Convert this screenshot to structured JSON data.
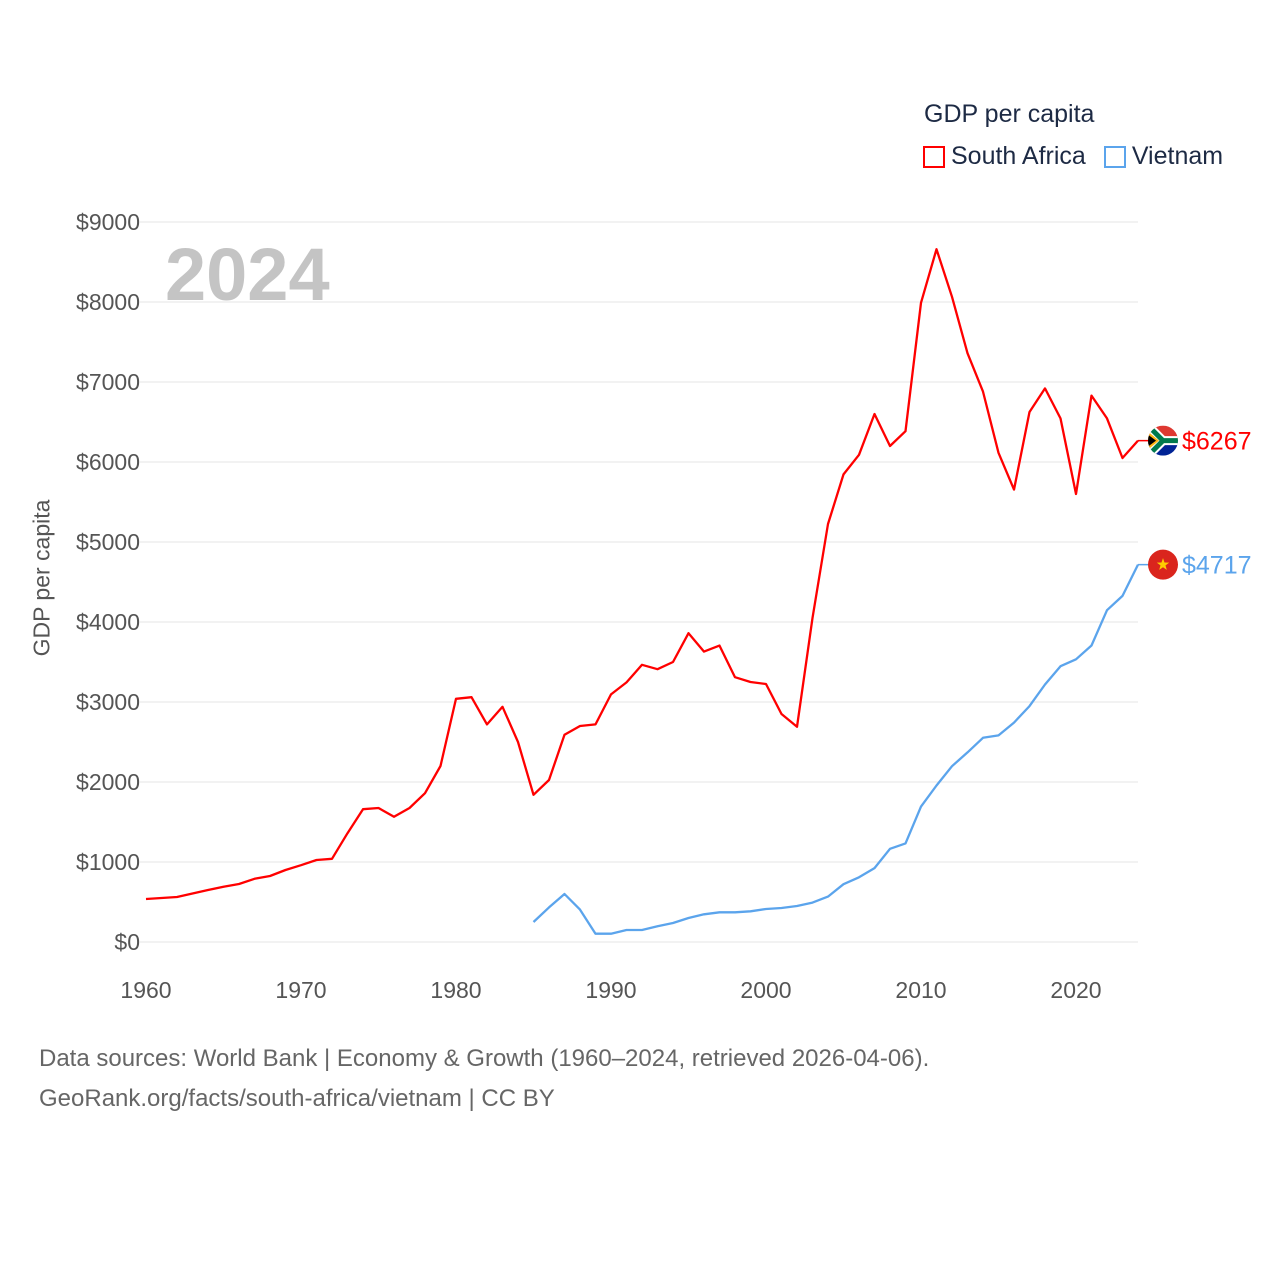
{
  "chart_data": {
    "type": "line",
    "title": "GDP per capita",
    "year_label": "2024",
    "xlabel": "",
    "ylabel": "GDP per capita",
    "xlim": [
      1960,
      2024
    ],
    "ylim": [
      0,
      9000
    ],
    "x_ticks": [
      1960,
      1970,
      1980,
      1990,
      2000,
      2010,
      2020
    ],
    "y_ticks": [
      0,
      1000,
      2000,
      3000,
      4000,
      5000,
      6000,
      7000,
      8000,
      9000
    ],
    "y_tick_labels": [
      "$0",
      "$1000",
      "$2000",
      "$3000",
      "$4000",
      "$5000",
      "$6000",
      "$7000",
      "$8000",
      "$9000"
    ],
    "grid": true,
    "legend_position": "top-right",
    "series": [
      {
        "name": "South Africa",
        "color": "#ff0000",
        "end_label": "$6267",
        "x": [
          1960,
          1962,
          1964,
          1965,
          1966,
          1967,
          1968,
          1969,
          1970,
          1971,
          1972,
          1973,
          1974,
          1975,
          1976,
          1977,
          1978,
          1979,
          1980,
          1981,
          1982,
          1983,
          1984,
          1985,
          1986,
          1987,
          1988,
          1989,
          1990,
          1991,
          1992,
          1993,
          1994,
          1995,
          1996,
          1997,
          1998,
          1999,
          2000,
          2001,
          2002,
          2003,
          2004,
          2005,
          2006,
          2007,
          2008,
          2009,
          2010,
          2011,
          2012,
          2013,
          2014,
          2015,
          2016,
          2017,
          2018,
          2019,
          2020,
          2021,
          2022,
          2023,
          2024
        ],
        "values": [
          537,
          562,
          650,
          690,
          725,
          790,
          825,
          900,
          960,
          1025,
          1040,
          1360,
          1660,
          1675,
          1565,
          1675,
          1860,
          2200,
          3040,
          3060,
          2720,
          2940,
          2500,
          1840,
          2025,
          2590,
          2700,
          2720,
          3095,
          3245,
          3465,
          3410,
          3500,
          3860,
          3630,
          3705,
          3310,
          3250,
          3225,
          2850,
          2690,
          4050,
          5225,
          5845,
          6090,
          6600,
          6200,
          6385,
          7990,
          8660,
          8065,
          7360,
          6880,
          6115,
          5655,
          6625,
          6920,
          6545,
          5600,
          6830,
          6545,
          6050,
          6267
        ]
      },
      {
        "name": "Vietnam",
        "color": "#5ba4ec",
        "end_label": "$4717",
        "x": [
          1985,
          1986,
          1987,
          1988,
          1989,
          1990,
          1991,
          1992,
          1993,
          1994,
          1995,
          1996,
          1997,
          1998,
          1999,
          2000,
          2001,
          2002,
          2003,
          2004,
          2005,
          2006,
          2007,
          2008,
          2009,
          2010,
          2011,
          2012,
          2013,
          2014,
          2015,
          2016,
          2017,
          2018,
          2019,
          2020,
          2021,
          2022,
          2023,
          2024
        ],
        "values": [
          250,
          433,
          600,
          405,
          104,
          104,
          150,
          150,
          196,
          238,
          300,
          346,
          371,
          371,
          384,
          413,
          425,
          450,
          493,
          568,
          723,
          809,
          924,
          1165,
          1233,
          1692,
          1956,
          2197,
          2370,
          2553,
          2582,
          2742,
          2949,
          3219,
          3448,
          3534,
          3706,
          4148,
          4326,
          4717
        ]
      }
    ]
  },
  "footer": {
    "line1": "Data sources: World Bank | Economy & Growth (1960–2024, retrieved 2026-04-06).",
    "line2": "GeoRank.org/facts/south-africa/vietnam | CC BY"
  }
}
